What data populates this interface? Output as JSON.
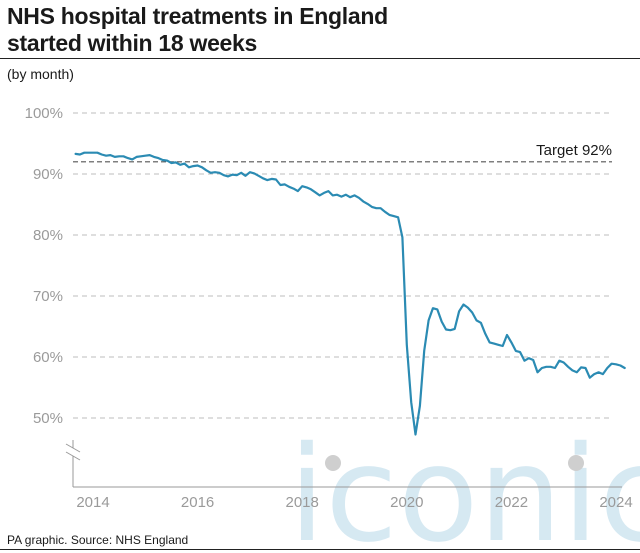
{
  "header": {
    "title_line1": "NHS hospital treatments in England",
    "title_line2": "started within 18 weeks",
    "subtitle": "(by month)"
  },
  "footer": {
    "source": "PA graphic. Source: NHS England"
  },
  "watermark": {
    "text": "iconic"
  },
  "colors": {
    "line": "#2b8bb3",
    "grid": "#bdbdbd",
    "target": "#555555",
    "watermark": "#cde4f0"
  },
  "chart_data": {
    "type": "line",
    "title": "NHS hospital treatments in England started within 18 weeks",
    "subtitle": "(by month)",
    "ylim": [
      44,
      100
    ],
    "y_ticks": [
      50,
      60,
      70,
      80,
      90,
      100
    ],
    "y_tick_labels": [
      "50%",
      "60%",
      "70%",
      "80%",
      "90%",
      "100%"
    ],
    "y_axis_break": true,
    "x_ticks": [
      "2014",
      "2016",
      "2018",
      "2020",
      "2022",
      "2024"
    ],
    "grid": "horizontal dashed",
    "target": {
      "value": 92,
      "label": "Target 92%"
    },
    "series": [
      {
        "start": "2013-09",
        "frequency": "monthly",
        "values": [
          93.3,
          93.2,
          93.5,
          93.5,
          93.5,
          93.5,
          93.2,
          93.0,
          93.1,
          92.8,
          92.9,
          92.9,
          92.6,
          92.4,
          92.8,
          92.9,
          93.0,
          93.1,
          92.8,
          92.6,
          92.3,
          92.2,
          91.8,
          91.9,
          91.5,
          91.7,
          91.1,
          91.3,
          91.4,
          91.1,
          90.6,
          90.2,
          90.3,
          90.2,
          89.8,
          89.6,
          89.9,
          89.8,
          90.2,
          89.7,
          90.3,
          90.1,
          89.7,
          89.3,
          89.0,
          89.2,
          89.1,
          88.2,
          88.3,
          87.9,
          87.6,
          87.2,
          88.0,
          87.8,
          87.5,
          87.0,
          86.5,
          86.9,
          87.2,
          86.5,
          86.6,
          86.3,
          86.6,
          86.2,
          86.5,
          86.1,
          85.5,
          85.1,
          84.6,
          84.4,
          84.4,
          83.8,
          83.3,
          83.1,
          82.9,
          79.6,
          62.0,
          52.6,
          47.3,
          52.0,
          61.0,
          66.0,
          68.0,
          67.8,
          65.8,
          64.5,
          64.4,
          64.6,
          67.5,
          68.6,
          68.1,
          67.3,
          66.0,
          65.6,
          63.8,
          62.4,
          62.2,
          62.0,
          61.8,
          63.6,
          62.4,
          61.0,
          60.8,
          59.4,
          59.8,
          59.5,
          57.5,
          58.2,
          58.4,
          58.4,
          58.2,
          59.4,
          59.1,
          58.4,
          57.8,
          57.5,
          58.3,
          58.2,
          56.6,
          57.2,
          57.5,
          57.2,
          58.2,
          58.9,
          58.8,
          58.6,
          58.2
        ]
      }
    ]
  }
}
